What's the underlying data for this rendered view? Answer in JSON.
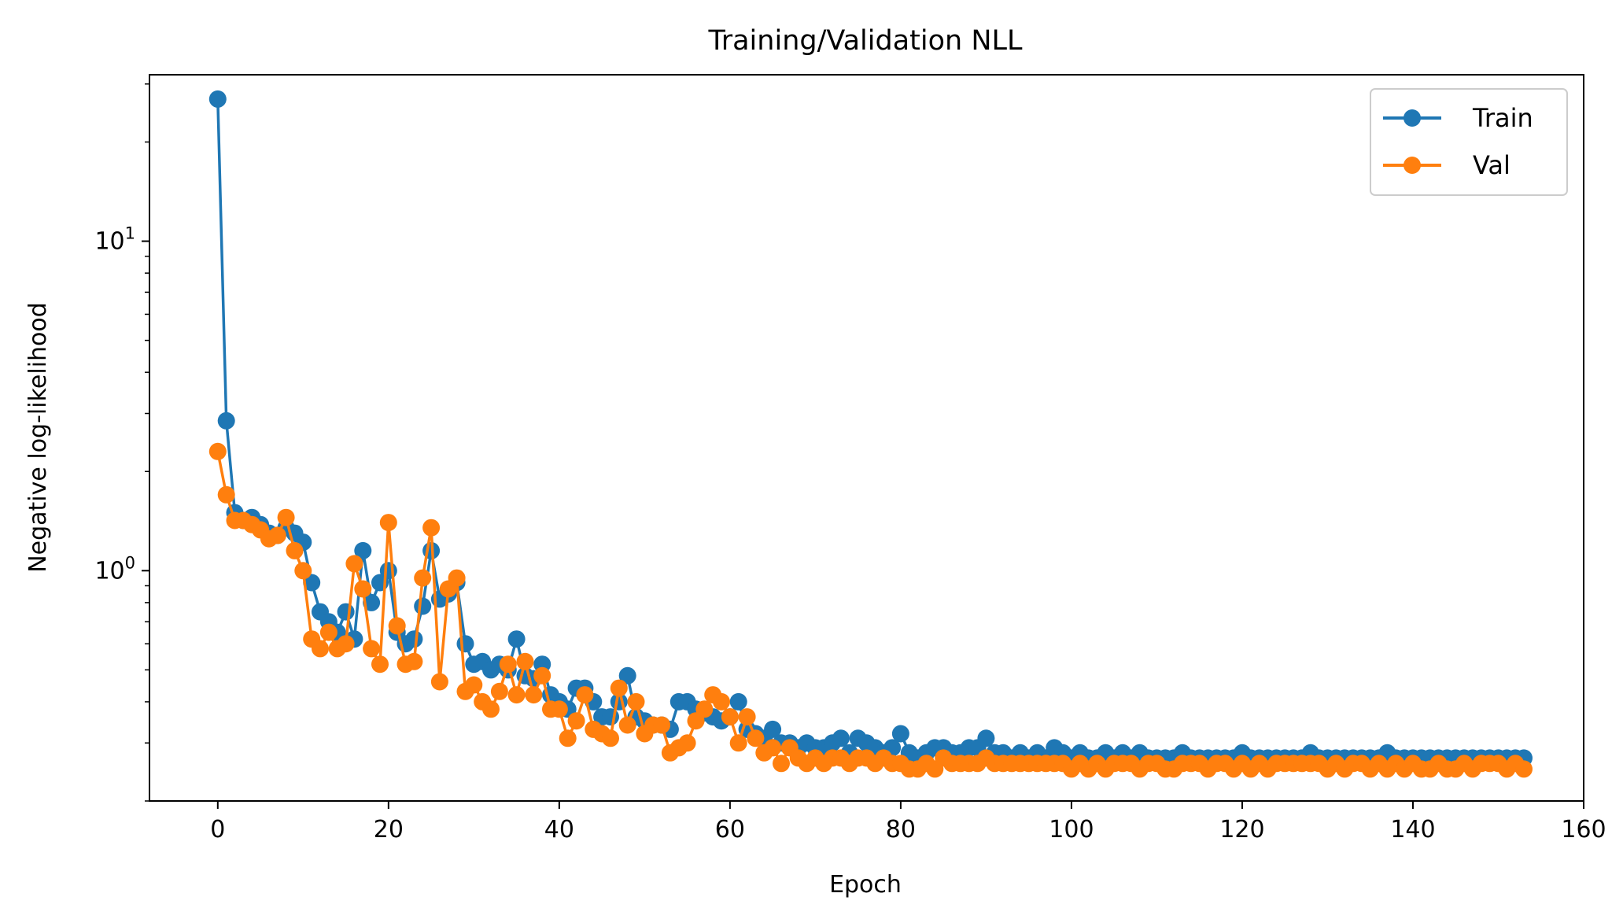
{
  "chart_data": {
    "type": "line",
    "title": "Training/Validation NLL",
    "xlabel": "Epoch",
    "ylabel": "Negative log-likelihood",
    "yscale": "log",
    "xlim": [
      -8,
      160
    ],
    "ylim": [
      0.2,
      32
    ],
    "xticks": [
      0,
      20,
      40,
      60,
      80,
      100,
      120,
      140,
      160
    ],
    "yticks": [
      {
        "value": 1,
        "base": "10",
        "exp": "0"
      },
      {
        "value": 10,
        "base": "10",
        "exp": "1"
      }
    ],
    "grid": false,
    "legend_position": "top-right",
    "x": [
      0,
      1,
      2,
      3,
      4,
      5,
      6,
      7,
      8,
      9,
      10,
      11,
      12,
      13,
      14,
      15,
      16,
      17,
      18,
      19,
      20,
      21,
      22,
      23,
      24,
      25,
      26,
      27,
      28,
      29,
      30,
      31,
      32,
      33,
      34,
      35,
      36,
      37,
      38,
      39,
      40,
      41,
      42,
      43,
      44,
      45,
      46,
      47,
      48,
      49,
      50,
      51,
      52,
      53,
      54,
      55,
      56,
      57,
      58,
      59,
      60,
      61,
      62,
      63,
      64,
      65,
      66,
      67,
      68,
      69,
      70,
      71,
      72,
      73,
      74,
      75,
      76,
      77,
      78,
      79,
      80,
      81,
      82,
      83,
      84,
      85,
      86,
      87,
      88,
      89,
      90,
      91,
      92,
      93,
      94,
      95,
      96,
      97,
      98,
      99,
      100,
      101,
      102,
      103,
      104,
      105,
      106,
      107,
      108,
      109,
      110,
      111,
      112,
      113,
      114,
      115,
      116,
      117,
      118,
      119,
      120,
      121,
      122,
      123,
      124,
      125,
      126,
      127,
      128,
      129,
      130,
      131,
      132,
      133,
      134,
      135,
      136,
      137,
      138,
      139,
      140,
      141,
      142,
      143,
      144,
      145,
      146,
      147,
      148,
      149,
      150,
      151,
      152,
      153
    ],
    "series": [
      {
        "name": "Train",
        "color": "#1f77b4",
        "values": [
          27.0,
          2.85,
          1.5,
          1.42,
          1.45,
          1.38,
          1.3,
          1.28,
          1.35,
          1.3,
          1.22,
          0.92,
          0.75,
          0.7,
          0.65,
          0.75,
          0.62,
          1.15,
          0.8,
          0.92,
          1.0,
          0.65,
          0.6,
          0.62,
          0.78,
          1.15,
          0.82,
          0.85,
          0.92,
          0.6,
          0.52,
          0.53,
          0.5,
          0.52,
          0.5,
          0.62,
          0.48,
          0.47,
          0.52,
          0.42,
          0.4,
          0.38,
          0.44,
          0.44,
          0.4,
          0.36,
          0.36,
          0.4,
          0.48,
          0.36,
          0.35,
          0.34,
          0.34,
          0.33,
          0.4,
          0.4,
          0.38,
          0.37,
          0.36,
          0.35,
          0.36,
          0.4,
          0.33,
          0.32,
          0.31,
          0.33,
          0.3,
          0.3,
          0.29,
          0.3,
          0.29,
          0.29,
          0.3,
          0.31,
          0.28,
          0.31,
          0.3,
          0.29,
          0.28,
          0.29,
          0.32,
          0.28,
          0.27,
          0.28,
          0.29,
          0.29,
          0.28,
          0.28,
          0.29,
          0.29,
          0.31,
          0.28,
          0.28,
          0.27,
          0.28,
          0.27,
          0.28,
          0.27,
          0.29,
          0.28,
          0.27,
          0.28,
          0.27,
          0.27,
          0.28,
          0.27,
          0.28,
          0.27,
          0.28,
          0.27,
          0.27,
          0.27,
          0.27,
          0.28,
          0.27,
          0.27,
          0.27,
          0.27,
          0.27,
          0.27,
          0.28,
          0.27,
          0.27,
          0.27,
          0.27,
          0.27,
          0.27,
          0.27,
          0.28,
          0.27,
          0.27,
          0.27,
          0.27,
          0.27,
          0.27,
          0.27,
          0.27,
          0.28,
          0.27,
          0.27,
          0.27,
          0.27,
          0.27,
          0.27,
          0.27,
          0.27,
          0.27,
          0.27,
          0.27,
          0.27,
          0.27,
          0.27,
          0.27,
          0.27
        ]
      },
      {
        "name": "Val",
        "color": "#ff7f0e",
        "values": [
          2.3,
          1.7,
          1.42,
          1.42,
          1.38,
          1.33,
          1.25,
          1.28,
          1.45,
          1.15,
          1.0,
          0.62,
          0.58,
          0.65,
          0.58,
          0.6,
          1.05,
          0.88,
          0.58,
          0.52,
          1.4,
          0.68,
          0.52,
          0.53,
          0.95,
          1.35,
          0.46,
          0.88,
          0.95,
          0.43,
          0.45,
          0.4,
          0.38,
          0.43,
          0.52,
          0.42,
          0.53,
          0.42,
          0.48,
          0.38,
          0.38,
          0.31,
          0.35,
          0.42,
          0.33,
          0.32,
          0.31,
          0.44,
          0.34,
          0.4,
          0.32,
          0.34,
          0.34,
          0.28,
          0.29,
          0.3,
          0.35,
          0.38,
          0.42,
          0.4,
          0.36,
          0.3,
          0.36,
          0.31,
          0.28,
          0.29,
          0.26,
          0.29,
          0.27,
          0.26,
          0.27,
          0.26,
          0.27,
          0.27,
          0.26,
          0.27,
          0.27,
          0.26,
          0.27,
          0.26,
          0.26,
          0.25,
          0.25,
          0.26,
          0.25,
          0.27,
          0.26,
          0.26,
          0.26,
          0.26,
          0.27,
          0.26,
          0.26,
          0.26,
          0.26,
          0.26,
          0.26,
          0.26,
          0.26,
          0.26,
          0.25,
          0.26,
          0.25,
          0.26,
          0.25,
          0.26,
          0.26,
          0.26,
          0.25,
          0.26,
          0.26,
          0.25,
          0.25,
          0.26,
          0.26,
          0.26,
          0.25,
          0.26,
          0.26,
          0.25,
          0.26,
          0.25,
          0.26,
          0.25,
          0.26,
          0.26,
          0.26,
          0.26,
          0.26,
          0.26,
          0.25,
          0.26,
          0.25,
          0.26,
          0.26,
          0.25,
          0.26,
          0.25,
          0.26,
          0.25,
          0.26,
          0.25,
          0.25,
          0.26,
          0.25,
          0.25,
          0.26,
          0.25,
          0.26,
          0.26,
          0.26,
          0.25,
          0.26,
          0.25
        ]
      }
    ]
  }
}
